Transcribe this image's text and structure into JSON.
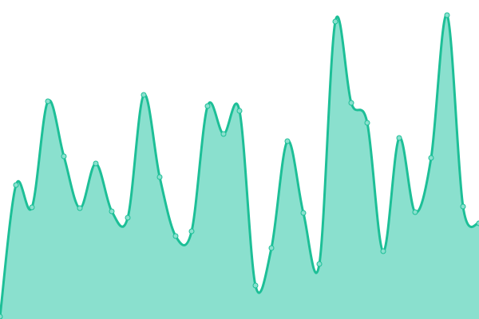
{
  "chart_data": {
    "type": "area",
    "title": "",
    "xlabel": "",
    "ylabel": "",
    "x": [
      0,
      1,
      2,
      3,
      4,
      5,
      6,
      7,
      8,
      9,
      10,
      11,
      12,
      13,
      14,
      15,
      16,
      17,
      18,
      19,
      20,
      21,
      22,
      23,
      24,
      25,
      26,
      27,
      28,
      29,
      30
    ],
    "values": [
      3,
      168,
      140,
      273,
      204,
      139,
      195,
      135,
      127,
      281,
      178,
      104,
      110,
      267,
      232,
      261,
      42,
      89,
      223,
      133,
      69,
      373,
      271,
      246,
      85,
      227,
      134,
      202,
      381,
      141,
      120
    ],
    "xlim": [
      0,
      30
    ],
    "ylim": [
      0,
      400
    ],
    "grid": false,
    "axes_visible": false,
    "smooth": true,
    "colors": {
      "line": "#1dbf97",
      "fill": "#8ae0ce",
      "marker_fill": "#8ae0ce",
      "marker_stroke": "#1dbf97"
    }
  }
}
